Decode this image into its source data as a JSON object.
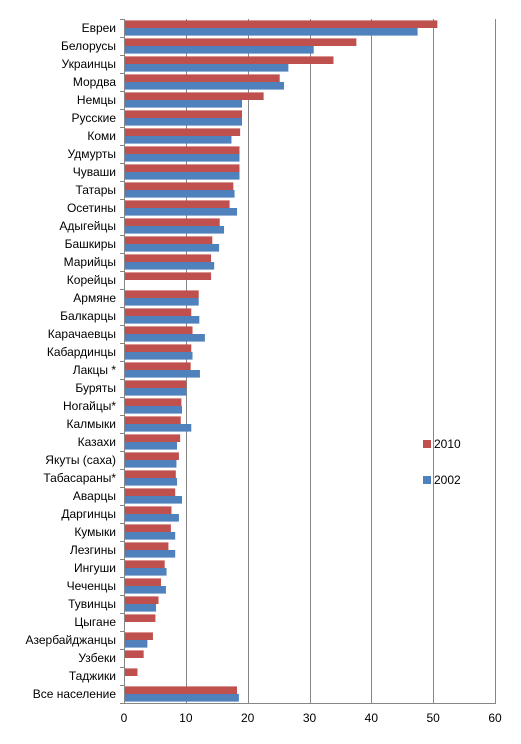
{
  "chart_data": {
    "type": "bar",
    "orientation": "horizontal",
    "title": "",
    "xlabel": "",
    "ylabel": "",
    "xlim": [
      0,
      60
    ],
    "x_ticks": [
      "0",
      "10",
      "20",
      "30",
      "40",
      "50",
      "60"
    ],
    "grid": "vertical",
    "legend_position": "right",
    "categories": [
      "Евреи",
      "Белорусы",
      "Украинцы",
      "Мордва",
      "Немцы",
      "Русские",
      "Коми",
      "Удмурты",
      "Чуваши",
      "Татары",
      "Осетины",
      "Адыгейцы",
      "Башкиры",
      "Марийцы",
      "Корейцы",
      "Армяне",
      "Балкарцы",
      "Карачаевцы",
      "Кабардинцы",
      "Лакцы *",
      "Буряты",
      "Ногайцы*",
      "Калмыки",
      "Казахи",
      "Якуты (саха)",
      "Табасараны*",
      "Аварцы",
      "Даргинцы",
      "Кумыки",
      "Лезгины",
      "Ингуши",
      "Чеченцы",
      "Тувинцы",
      "Цыгане",
      "Азербайджанцы",
      "Узбеки",
      "Таджики",
      "Все население"
    ],
    "series": [
      {
        "name": "2010",
        "color": "#c0504d",
        "values": [
          50.6,
          37.5,
          33.8,
          25.1,
          22.5,
          19.0,
          18.7,
          18.6,
          18.6,
          17.6,
          17.0,
          15.4,
          14.2,
          14.0,
          14.0,
          12.0,
          10.8,
          11.0,
          10.8,
          10.7,
          10.0,
          9.2,
          9.1,
          9.0,
          8.8,
          8.3,
          8.2,
          7.6,
          7.5,
          7.1,
          6.5,
          5.9,
          5.5,
          5.0,
          4.6,
          3.1,
          2.1,
          18.2
        ],
        "legend_label": "2010"
      },
      {
        "name": "2002",
        "color": "#4f81bd",
        "values": [
          47.4,
          30.6,
          26.5,
          25.8,
          19.0,
          19.0,
          17.3,
          18.6,
          18.6,
          17.8,
          18.2,
          16.1,
          15.3,
          14.5,
          null,
          12.0,
          12.1,
          13.0,
          11.0,
          12.2,
          10.0,
          9.3,
          10.8,
          8.5,
          8.4,
          8.5,
          9.3,
          8.8,
          8.2,
          8.2,
          6.8,
          6.7,
          5.1,
          null,
          3.7,
          null,
          null,
          18.5
        ],
        "legend_label": "2002"
      }
    ]
  }
}
